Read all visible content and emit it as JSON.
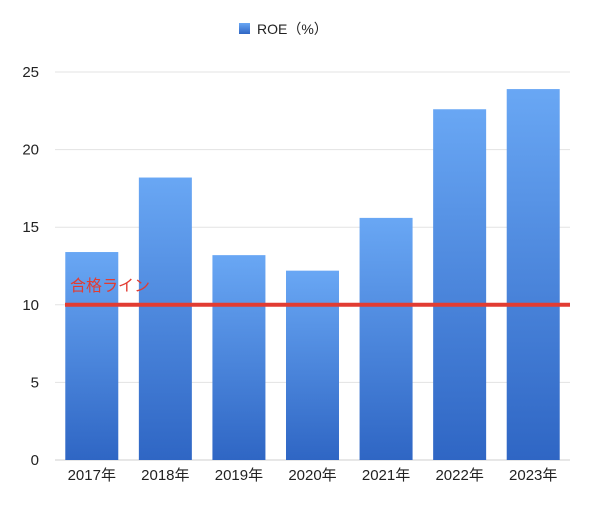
{
  "chart_data": {
    "type": "bar",
    "categories": [
      "2017年",
      "2018年",
      "2019年",
      "2020年",
      "2021年",
      "2022年",
      "2023年"
    ],
    "series": [
      {
        "name": "ROE（%）",
        "values": [
          13.4,
          18.2,
          13.2,
          12.2,
          15.6,
          22.6,
          23.9
        ]
      }
    ],
    "ylim": [
      0,
      25
    ],
    "yticks": [
      0,
      5,
      10,
      15,
      20,
      25
    ],
    "grid": true,
    "legend_position": "top-center",
    "colors": {
      "bar_top": "#69a7f4",
      "bar_bottom": "#2f66c4",
      "reference_line": "#e23c32",
      "grid": "#e3e3e3",
      "axis_text": "#222222"
    },
    "reference_line": {
      "value": 10,
      "label": "合格ライン"
    }
  }
}
